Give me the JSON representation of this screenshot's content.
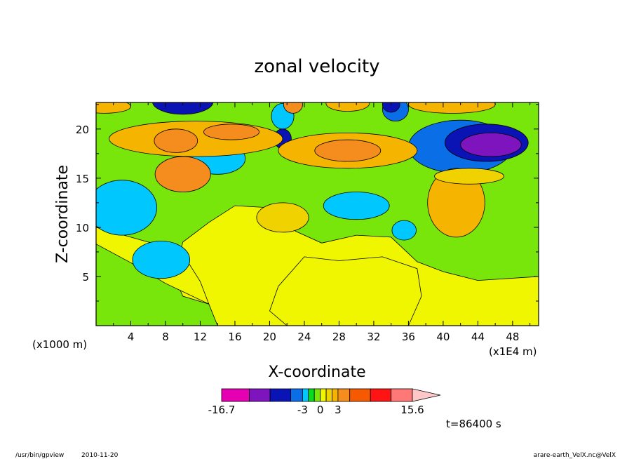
{
  "chart_data": {
    "type": "heatmap",
    "title": "zonal velocity",
    "xlabel": "X-coordinate",
    "ylabel": "Z-coordinate",
    "x_unit_left": "(x1000 m)",
    "x_unit_right": "(x1E4 m)",
    "x_ticks": [
      4,
      8,
      12,
      16,
      20,
      24,
      28,
      32,
      36,
      40,
      44,
      48
    ],
    "y_ticks": [
      5,
      10,
      15,
      20
    ],
    "xlim": [
      0,
      51
    ],
    "ylim": [
      0,
      22.7
    ],
    "colorbar": {
      "labels": [
        "-16.7",
        "-3",
        "0",
        "3",
        "15.6"
      ],
      "label_positions": [
        -16.7,
        -3,
        0,
        3,
        15.6
      ],
      "boundaries": [
        -16.7,
        -12,
        -8.5,
        -5,
        -3,
        -2,
        -1,
        0,
        1,
        2,
        3,
        5,
        8.5,
        12,
        15.6
      ],
      "colors": [
        "#e600b4",
        "#7d14be",
        "#0a14b4",
        "#0a6ee6",
        "#00c8ff",
        "#0adc1e",
        "#78e60a",
        "#f0f500",
        "#f0d200",
        "#f5b400",
        "#f58c1e",
        "#f55a00",
        "#ff1414",
        "#ff7878"
      ],
      "extend_color": "#ffc8c8"
    },
    "blobs": [
      {
        "x": 3,
        "z": 12,
        "rx": 4,
        "rz": 2.8,
        "v": -2.6
      },
      {
        "x": 7.5,
        "z": 6.7,
        "rx": 3.3,
        "rz": 1.9,
        "v": -2.6
      },
      {
        "x": 14,
        "z": 17,
        "rx": 3.2,
        "rz": 1.6,
        "v": -2.6
      },
      {
        "x": 30,
        "z": 12.2,
        "rx": 3.8,
        "rz": 1.4,
        "v": -2.6
      },
      {
        "x": 35.5,
        "z": 9.7,
        "rx": 1.4,
        "rz": 1,
        "v": -2.6
      },
      {
        "x": 21.5,
        "z": 21.3,
        "rx": 1.3,
        "rz": 1.3,
        "v": -2.6
      },
      {
        "x": 34.5,
        "z": 22,
        "rx": 1.5,
        "rz": 1.2,
        "v": -3.5
      },
      {
        "x": 42,
        "z": 18.2,
        "rx": 6,
        "rz": 2.7,
        "v": -3.5
      },
      {
        "x": 45,
        "z": 18.6,
        "rx": 4.8,
        "rz": 1.9,
        "v": -7
      },
      {
        "x": 45.5,
        "z": 18.4,
        "rx": 3.5,
        "rz": 1.2,
        "v": -10
      },
      {
        "x": 10,
        "z": 22.8,
        "rx": 3.5,
        "rz": 1.3,
        "v": -6
      },
      {
        "x": 21.5,
        "z": 19,
        "rx": 1,
        "rz": 1,
        "v": -6
      },
      {
        "x": 34,
        "z": 22.5,
        "rx": 1,
        "rz": 0.8,
        "v": -6
      },
      {
        "x": 11.5,
        "z": 19,
        "rx": 10,
        "rz": 1.8,
        "v": 2.4
      },
      {
        "x": 10,
        "z": 15.4,
        "rx": 3.2,
        "rz": 1.8,
        "v": 3.4
      },
      {
        "x": 9.2,
        "z": 18.8,
        "rx": 2.5,
        "rz": 1.2,
        "v": 4.5
      },
      {
        "x": 15.6,
        "z": 19.7,
        "rx": 3.2,
        "rz": 0.8,
        "v": 4
      },
      {
        "x": 29,
        "z": 17.8,
        "rx": 8,
        "rz": 1.8,
        "v": 2.5
      },
      {
        "x": 29,
        "z": 17.8,
        "rx": 3.8,
        "rz": 1.1,
        "v": 3.4
      },
      {
        "x": 22.7,
        "z": 22.5,
        "rx": 1.1,
        "rz": 0.9,
        "v": 3.4
      },
      {
        "x": 29,
        "z": 22.6,
        "rx": 2.5,
        "rz": 0.8,
        "v": 2.4
      },
      {
        "x": 41,
        "z": 22.5,
        "rx": 5,
        "rz": 0.9,
        "v": 2.4
      },
      {
        "x": 41.5,
        "z": 12.5,
        "rx": 3.3,
        "rz": 3.5,
        "v": 2.4
      },
      {
        "x": 43,
        "z": 15.2,
        "rx": 4,
        "rz": 0.8,
        "v": 1.6
      },
      {
        "x": 21.5,
        "z": 11,
        "rx": 3,
        "rz": 1.5,
        "v": 1.5
      },
      {
        "x": 1,
        "z": 22.3,
        "rx": 3,
        "rz": 0.7,
        "v": 2.4
      }
    ]
  },
  "footer": {
    "time_label": "t=86400 s",
    "program": "/usr/bin/gpview",
    "date": "2010-11-20",
    "source": "arare-earth_VelX.nc@VelX"
  }
}
